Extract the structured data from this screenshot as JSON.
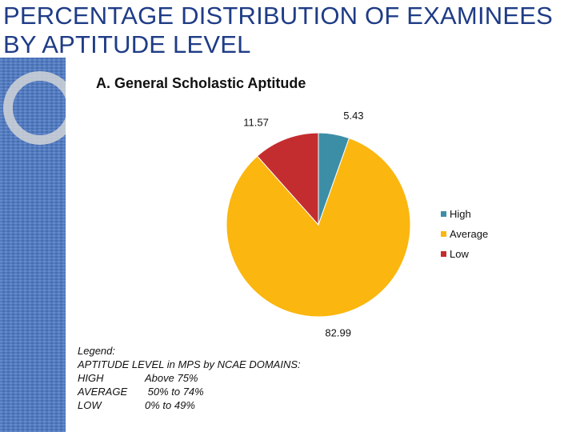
{
  "slide": {
    "title_line1": "PERCENTAGE DISTRIBUTION OF EXAMINEES",
    "title_line2": "BY APTITUDE LEVEL",
    "subtitle": "A. General Scholastic Aptitude"
  },
  "note": {
    "heading": "Legend:",
    "line": "APTITUDE  LEVEL in MPS by NCAE DOMAINS:",
    "rows": [
      {
        "level": "HIGH",
        "range": "Above 75%"
      },
      {
        "level": "AVERAGE",
        "range": " 50% to 74%"
      },
      {
        "level": "LOW",
        "range": "0% to 49%"
      }
    ]
  },
  "chart_data": {
    "type": "pie",
    "title": "A. General Scholastic Aptitude",
    "categories": [
      "High",
      "Average",
      "Low"
    ],
    "values": [
      5.43,
      82.99,
      11.57
    ],
    "data_labels": [
      "5.43",
      "82.99",
      "11.57"
    ],
    "colors": [
      "#3c8ea6",
      "#fbb60f",
      "#c42d2f"
    ],
    "legend_position": "right"
  }
}
